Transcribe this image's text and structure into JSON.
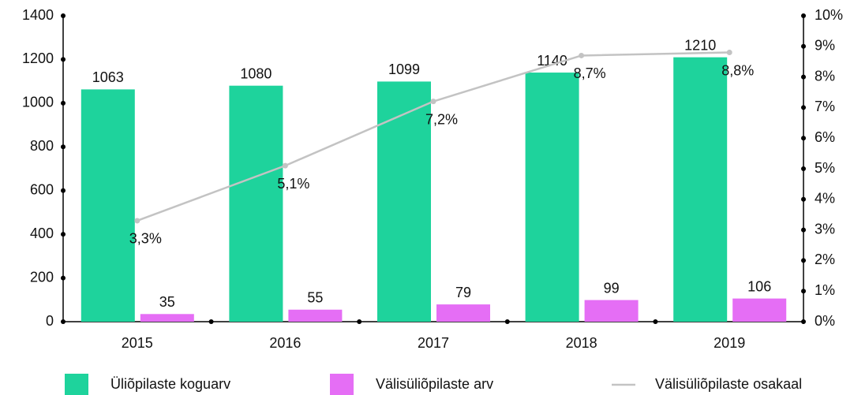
{
  "chart_data": {
    "type": "bar",
    "categories": [
      "2015",
      "2016",
      "2017",
      "2018",
      "2019"
    ],
    "series": [
      {
        "name": "Üliõpilaste koguarv",
        "color": "#1ed39c",
        "values": [
          1063,
          1080,
          1099,
          1140,
          1210
        ]
      },
      {
        "name": "Välisüliõpilaste arv",
        "color": "#e56ef5",
        "values": [
          35,
          55,
          79,
          99,
          106
        ]
      },
      {
        "name": "Välisüliõpilaste osakaal",
        "type": "line",
        "axis": "y2",
        "color": "#c3c3c3",
        "values": [
          3.3,
          5.1,
          7.2,
          8.7,
          8.8
        ],
        "value_labels": [
          "3,3%",
          "5,1%",
          "7,2%",
          "8,7%",
          "8,8%"
        ]
      }
    ],
    "ylim": [
      0,
      1400
    ],
    "yticks": [
      0,
      200,
      400,
      600,
      800,
      1000,
      1200,
      1400
    ],
    "y2lim": [
      0,
      10
    ],
    "y2ticks": [
      {
        "value": 0,
        "label": "0%"
      },
      {
        "value": 1,
        "label": "1%"
      },
      {
        "value": 2,
        "label": "2%"
      },
      {
        "value": 3,
        "label": "3%"
      },
      {
        "value": 4,
        "label": "4%"
      },
      {
        "value": 5,
        "label": "5%"
      },
      {
        "value": 6,
        "label": "6%"
      },
      {
        "value": 7,
        "label": "7%"
      },
      {
        "value": 8,
        "label": "8%"
      },
      {
        "value": 9,
        "label": "9%"
      },
      {
        "value": 10,
        "label": "10%"
      }
    ],
    "legend": "bottom"
  }
}
